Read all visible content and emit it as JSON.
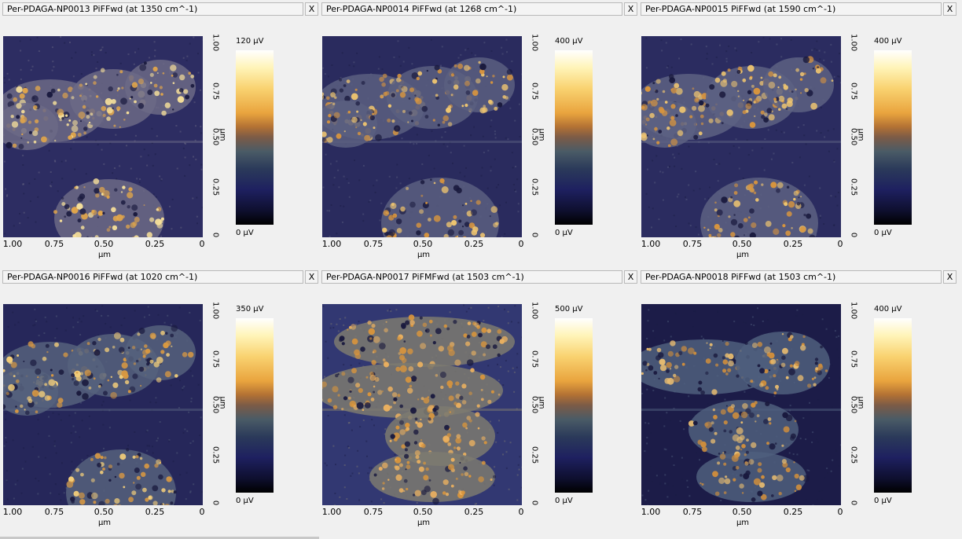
{
  "panels": [
    {
      "title": "Per-PDAGA-NP0013 PiFFwd  (at 1350 cm^-1)",
      "close": "X",
      "cb_max": "120 µV",
      "cb_min": "0 µV",
      "xticks": [
        "1.00",
        "0.75",
        "0.50",
        "0.25",
        "0"
      ],
      "xlabel": "µm",
      "yticks": [
        "1.00",
        "0.75",
        "0.50",
        "0.25",
        "0"
      ],
      "ylabel": "µm",
      "palette": {
        "bg": "#2d2d62",
        "mid": "#6c6a86",
        "hi": "#e2a64a",
        "top": "#f7e09a"
      }
    },
    {
      "title": "Per-PDAGA-NP0014 PiFFwd  (at 1268 cm^-1)",
      "close": "X",
      "cb_max": "400 µV",
      "cb_min": "0 µV",
      "xticks": [
        "1.00",
        "0.75",
        "0.50",
        "0.25",
        "0"
      ],
      "xlabel": "µm",
      "yticks": [
        "1.00",
        "0.75",
        "0.50",
        "0.25",
        "0"
      ],
      "ylabel": "µm",
      "palette": {
        "bg": "#2a2b5e",
        "mid": "#5a5f80",
        "hi": "#d8953e",
        "top": "#f0c670"
      }
    },
    {
      "title": "Per-PDAGA-NP0015 PiFFwd  (at 1590 cm^-1)",
      "close": "X",
      "cb_max": "400 µV",
      "cb_min": "0 µV",
      "xticks": [
        "1.00",
        "0.75",
        "0.50",
        "0.25",
        "0"
      ],
      "xlabel": "µm",
      "yticks": [
        "1.00",
        "0.75",
        "0.50",
        "0.25",
        "0"
      ],
      "ylabel": "µm",
      "palette": {
        "bg": "#2b2c60",
        "mid": "#5d6282",
        "hi": "#d8953e",
        "top": "#f0c670"
      }
    },
    {
      "title": "Per-PDAGA-NP0016 PiFFwd  (at 1020 cm^-1)",
      "close": "X",
      "cb_max": "350 µV",
      "cb_min": "0 µV",
      "xticks": [
        "1.00",
        "0.75",
        "0.50",
        "0.25",
        "0"
      ],
      "xlabel": "µm",
      "yticks": [
        "1.00",
        "0.75",
        "0.50",
        "0.25",
        "0"
      ],
      "ylabel": "µm",
      "palette": {
        "bg": "#26275a",
        "mid": "#56617d",
        "hi": "#d99942",
        "top": "#f2cd7a"
      }
    },
    {
      "title": "Per-PDAGA-NP0017 PiFMFwd  (at 1503 cm^-1)",
      "close": "X",
      "cb_max": "500 µV",
      "cb_min": "0 µV",
      "xticks": [
        "1.00",
        "0.75",
        "0.50",
        "0.25",
        "0"
      ],
      "xlabel": "µm",
      "yticks": [
        "1.00",
        "0.75",
        "0.50",
        "0.25",
        "0"
      ],
      "ylabel": "µm",
      "palette": {
        "bg": "#323872",
        "mid": "#7d7a70",
        "hi": "#d9953c",
        "top": "#eab060"
      }
    },
    {
      "title": "Per-PDAGA-NP0018 PiFFwd  (at 1503 cm^-1)",
      "close": "X",
      "cb_max": "400 µV",
      "cb_min": "0 µV",
      "xticks": [
        "1.00",
        "0.75",
        "0.50",
        "0.25",
        "0"
      ],
      "xlabel": "µm",
      "yticks": [
        "1.00",
        "0.75",
        "0.50",
        "0.25",
        "0"
      ],
      "ylabel": "µm",
      "palette": {
        "bg": "#1c1c48",
        "mid": "#4f5f7e",
        "hi": "#cf8e3c",
        "top": "#e9bd70"
      }
    }
  ]
}
